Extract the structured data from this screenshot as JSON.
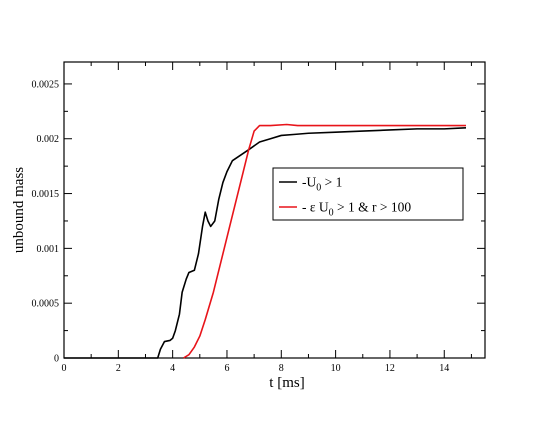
{
  "chart_data": {
    "type": "line",
    "xlabel": "t [ms]",
    "ylabel": "unbound mass",
    "xlim": [
      0,
      15.5
    ],
    "ylim": [
      0,
      0.0027
    ],
    "x_ticks": [
      "0",
      "2",
      "4",
      "6",
      "8",
      "10",
      "12",
      "14"
    ],
    "y_ticks": [
      "0",
      "0.0005",
      "0.001",
      "0.0015",
      "0.002",
      "0.0025"
    ],
    "legend_position": "center-right",
    "grid": false,
    "series": [
      {
        "name_parts": {
          "prefix": "-U",
          "sub": "0",
          "suffix": " > 1"
        },
        "color": "#000000",
        "points": [
          [
            0,
            0
          ],
          [
            3.45,
            0
          ],
          [
            3.55,
            8e-05
          ],
          [
            3.7,
            0.00015
          ],
          [
            3.9,
            0.00016
          ],
          [
            4.0,
            0.00018
          ],
          [
            4.1,
            0.00025
          ],
          [
            4.25,
            0.0004
          ],
          [
            4.35,
            0.0006
          ],
          [
            4.5,
            0.00072
          ],
          [
            4.6,
            0.00078
          ],
          [
            4.8,
            0.0008
          ],
          [
            4.95,
            0.00095
          ],
          [
            5.1,
            0.0012
          ],
          [
            5.2,
            0.00133
          ],
          [
            5.3,
            0.00125
          ],
          [
            5.4,
            0.0012
          ],
          [
            5.55,
            0.00125
          ],
          [
            5.7,
            0.00145
          ],
          [
            5.85,
            0.0016
          ],
          [
            6.0,
            0.0017
          ],
          [
            6.2,
            0.0018
          ],
          [
            6.5,
            0.00185
          ],
          [
            6.8,
            0.0019
          ],
          [
            7.2,
            0.00197
          ],
          [
            7.6,
            0.002
          ],
          [
            8.0,
            0.00203
          ],
          [
            8.5,
            0.00204
          ],
          [
            9.0,
            0.00205
          ],
          [
            10.0,
            0.00206
          ],
          [
            11.0,
            0.00207
          ],
          [
            12.0,
            0.00208
          ],
          [
            13.0,
            0.00209
          ],
          [
            14.0,
            0.00209
          ],
          [
            14.8,
            0.0021
          ]
        ]
      },
      {
        "name_parts": {
          "prefix": "- ε  U",
          "sub": "0",
          "suffix": " > 1  &  r > 100"
        },
        "color": "#e8141a",
        "points": [
          [
            4.4,
            0
          ],
          [
            4.6,
            3e-05
          ],
          [
            4.8,
            0.0001
          ],
          [
            5.0,
            0.0002
          ],
          [
            5.2,
            0.00035
          ],
          [
            5.5,
            0.0006
          ],
          [
            5.8,
            0.0009
          ],
          [
            6.1,
            0.0012
          ],
          [
            6.4,
            0.0015
          ],
          [
            6.6,
            0.0017
          ],
          [
            6.8,
            0.0019
          ],
          [
            7.0,
            0.00207
          ],
          [
            7.2,
            0.00212
          ],
          [
            7.6,
            0.00212
          ],
          [
            8.2,
            0.00213
          ],
          [
            8.6,
            0.00212
          ],
          [
            9.2,
            0.00212
          ],
          [
            10.0,
            0.00212
          ],
          [
            11.0,
            0.00212
          ],
          [
            12.0,
            0.00212
          ],
          [
            13.0,
            0.00212
          ],
          [
            14.0,
            0.00212
          ],
          [
            14.8,
            0.00212
          ]
        ]
      }
    ]
  }
}
